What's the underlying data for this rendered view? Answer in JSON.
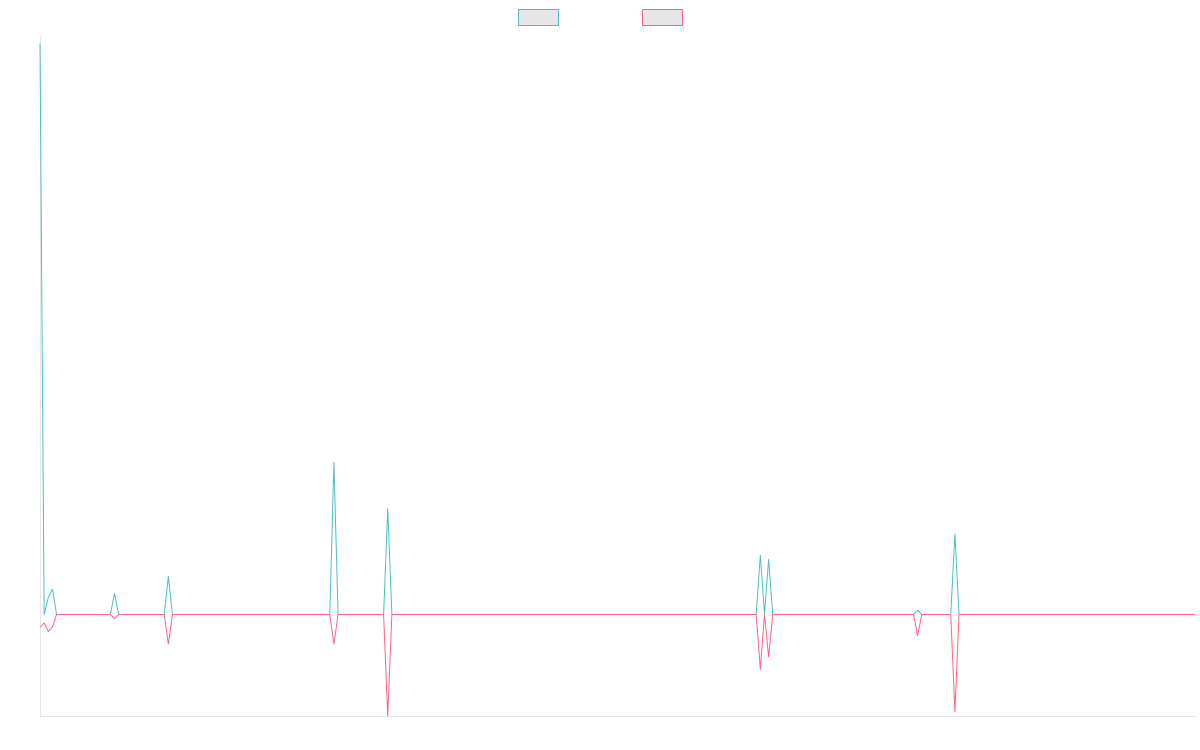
{
  "chart_data": {
    "type": "line",
    "x_count": 280,
    "ylim": [
      -24,
      137
    ],
    "grid": false,
    "legend_position": "top-center",
    "series": [
      {
        "name": "",
        "color": "#4bc0c0",
        "fill": "#e6e6e6",
        "points": [
          [
            0,
            135
          ],
          [
            1,
            0
          ],
          [
            2,
            4
          ],
          [
            3,
            6
          ],
          [
            4,
            0
          ],
          [
            17,
            0
          ],
          [
            18,
            5
          ],
          [
            19,
            0
          ],
          [
            30,
            0
          ],
          [
            31,
            9
          ],
          [
            32,
            0
          ],
          [
            70,
            0
          ],
          [
            71,
            36
          ],
          [
            72,
            0
          ],
          [
            83,
            0
          ],
          [
            84,
            25
          ],
          [
            85,
            0
          ],
          [
            173,
            0
          ],
          [
            174,
            14
          ],
          [
            175,
            0
          ],
          [
            176,
            13
          ],
          [
            177,
            0
          ],
          [
            211,
            0
          ],
          [
            212,
            1
          ],
          [
            213,
            0
          ],
          [
            220,
            0
          ],
          [
            221,
            19
          ],
          [
            222,
            0
          ],
          [
            279,
            0
          ]
        ]
      },
      {
        "name": "",
        "color": "#ff6384",
        "fill": "#e6e6e6",
        "points": [
          [
            0,
            -3
          ],
          [
            1,
            -2
          ],
          [
            2,
            -4
          ],
          [
            3,
            -3
          ],
          [
            4,
            0
          ],
          [
            17,
            0
          ],
          [
            18,
            -1
          ],
          [
            19,
            0
          ],
          [
            30,
            0
          ],
          [
            31,
            -7
          ],
          [
            32,
            0
          ],
          [
            70,
            0
          ],
          [
            71,
            -7
          ],
          [
            72,
            0
          ],
          [
            83,
            0
          ],
          [
            84,
            -24
          ],
          [
            85,
            0
          ],
          [
            173,
            0
          ],
          [
            174,
            -13
          ],
          [
            175,
            0
          ],
          [
            176,
            -10
          ],
          [
            177,
            0
          ],
          [
            211,
            0
          ],
          [
            212,
            -5
          ],
          [
            213,
            0
          ],
          [
            220,
            0
          ],
          [
            221,
            -23
          ],
          [
            222,
            0
          ],
          [
            279,
            0
          ]
        ]
      }
    ]
  }
}
